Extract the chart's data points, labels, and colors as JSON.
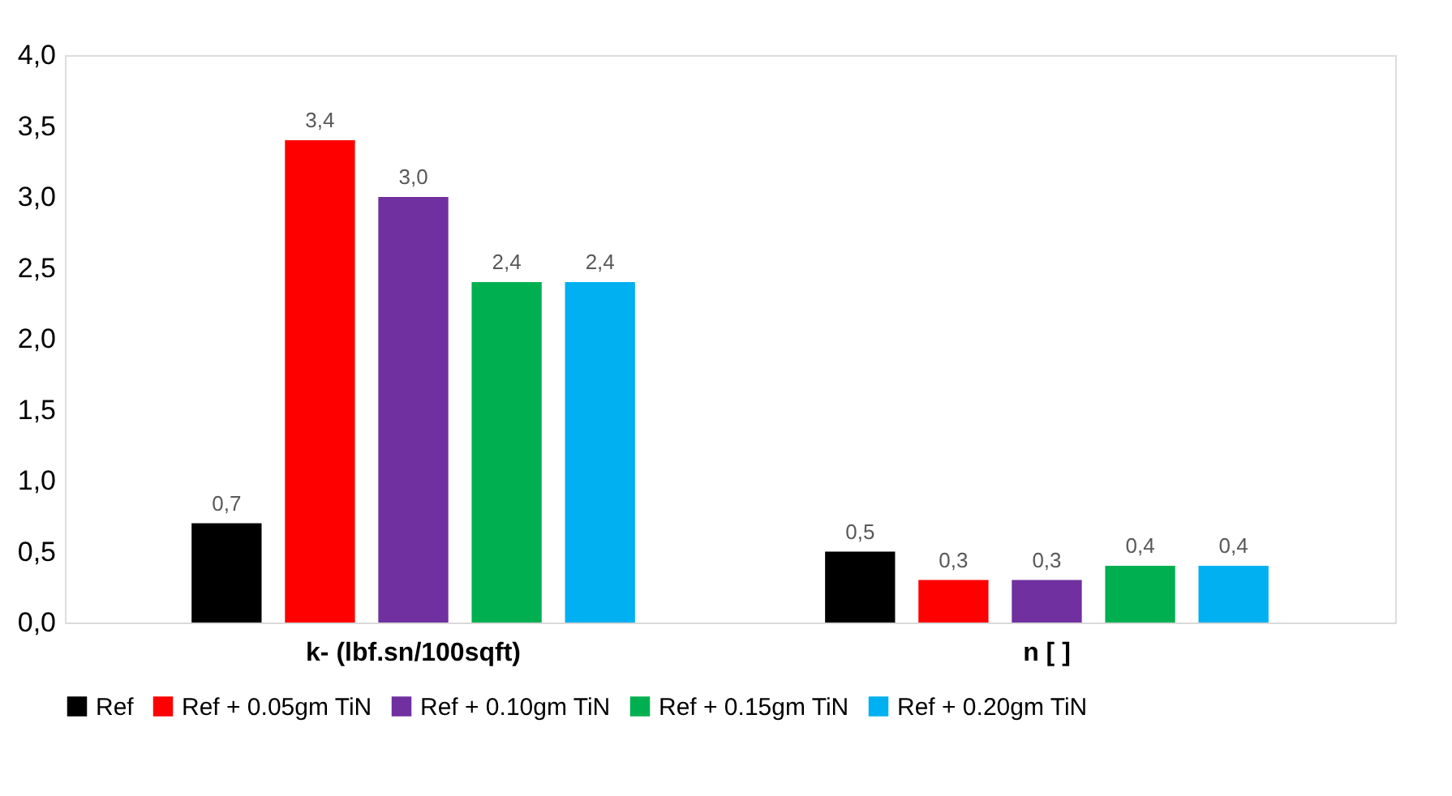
{
  "chart_data": {
    "type": "bar",
    "categories": [
      "k- (lbf.sn/100sqft)",
      "n [ ]"
    ],
    "series": [
      {
        "name": "Ref",
        "color": "#000000",
        "values": [
          0.7,
          0.5
        ],
        "value_labels": [
          "0,7",
          "0,5"
        ]
      },
      {
        "name": "Ref + 0.05gm TiN",
        "color": "#ff0000",
        "values": [
          3.4,
          0.3
        ],
        "value_labels": [
          "3,4",
          "0,3"
        ]
      },
      {
        "name": "Ref + 0.10gm TiN",
        "color": "#7030a0",
        "values": [
          3.0,
          0.3
        ],
        "value_labels": [
          "3,0",
          "0,3"
        ]
      },
      {
        "name": "Ref + 0.15gm TiN",
        "color": "#00b050",
        "values": [
          2.4,
          0.4
        ],
        "value_labels": [
          "2,4",
          "0,4"
        ]
      },
      {
        "name": "Ref + 0.20gm TiN",
        "color": "#00b0f0",
        "values": [
          2.4,
          0.4
        ],
        "value_labels": [
          "2,4",
          "0,4"
        ]
      }
    ],
    "ylim": [
      0,
      4
    ],
    "yticks": [
      {
        "value": 0,
        "label": "0,0"
      },
      {
        "value": 0.5,
        "label": "0,5"
      },
      {
        "value": 1,
        "label": "1,0"
      },
      {
        "value": 1.5,
        "label": "1,5"
      },
      {
        "value": 2,
        "label": "2,0"
      },
      {
        "value": 2.5,
        "label": "2,5"
      },
      {
        "value": 3,
        "label": "3,0"
      },
      {
        "value": 3.5,
        "label": "3,5"
      },
      {
        "value": 4,
        "label": "4,0"
      }
    ],
    "grid": false,
    "legend": "bottom"
  }
}
